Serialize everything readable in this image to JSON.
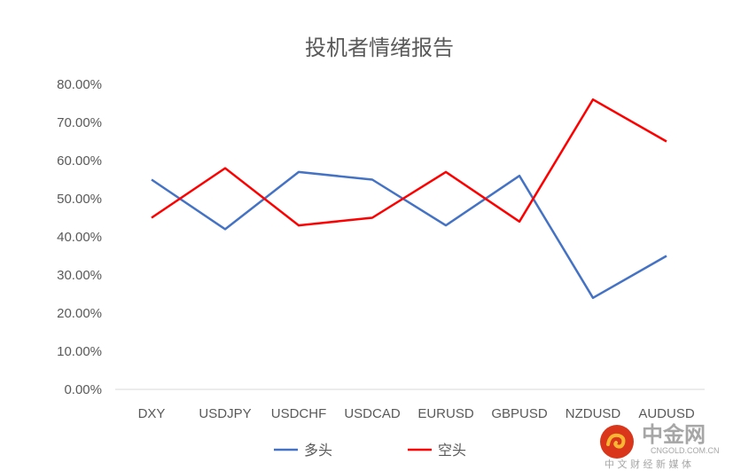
{
  "chart_data": {
    "type": "line",
    "title": "投机者情绪报告",
    "categories": [
      "DXY",
      "USDJPY",
      "USDCHF",
      "USDCAD",
      "EURUSD",
      "GBPUSD",
      "NZDUSD",
      "AUDUSD"
    ],
    "series": [
      {
        "name": "多头",
        "color": "#4472C4",
        "values": [
          55,
          42,
          57,
          55,
          43,
          56,
          24,
          35
        ]
      },
      {
        "name": "空头",
        "color": "#FF0000",
        "values": [
          45,
          58,
          43,
          45,
          57,
          44,
          76,
          65
        ]
      }
    ],
    "ylim": [
      0,
      80
    ],
    "yticks": [
      "0.00%",
      "10.00%",
      "20.00%",
      "30.00%",
      "40.00%",
      "50.00%",
      "60.00%",
      "70.00%",
      "80.00%"
    ],
    "grid": false,
    "legend": "bottom"
  },
  "watermark": {
    "logo": "中金网",
    "url": "CNGOLD.COM.CN",
    "slogan": "中 文 财 经 新 媒 体"
  }
}
